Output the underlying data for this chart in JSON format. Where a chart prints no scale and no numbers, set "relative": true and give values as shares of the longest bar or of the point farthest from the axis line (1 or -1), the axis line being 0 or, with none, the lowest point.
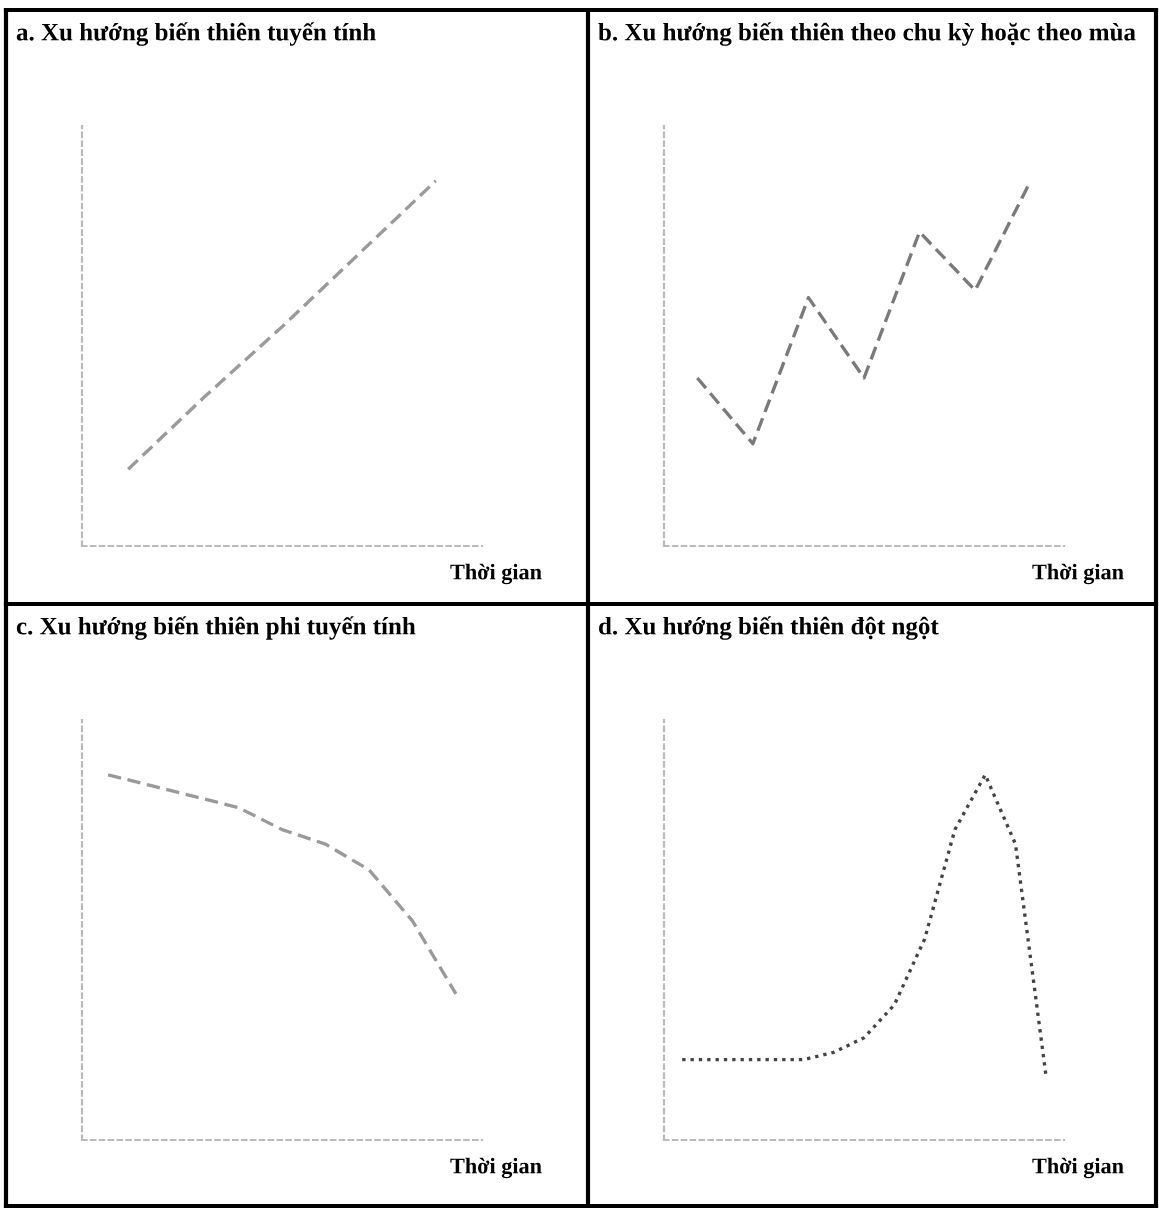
{
  "chart_data": [
    {
      "type": "line",
      "title": "a. Xu hướng biến thiên tuyến tính",
      "xlabel": "Thời gian",
      "relative": true,
      "line_style": "dashed",
      "categories": [
        null,
        null,
        null,
        null,
        null
      ],
      "series": [
        {
          "color": "#9a9a9a",
          "values": [
            0.21,
            0.41,
            0.6,
            0.8,
            1.0
          ]
        }
      ]
    },
    {
      "type": "line",
      "title": "b. Xu hướng biến thiên theo chu kỳ hoặc theo mùa",
      "xlabel": "Thời gian",
      "relative": true,
      "line_style": "dashed",
      "categories": [
        null,
        null,
        null,
        null,
        null,
        null,
        null
      ],
      "series": [
        {
          "color": "#7a7a7a",
          "values": [
            0.46,
            0.28,
            0.68,
            0.46,
            0.86,
            0.7,
            1.0
          ]
        }
      ]
    },
    {
      "type": "line",
      "title": "c. Xu hướng biến thiên phi tuyến tính",
      "xlabel": "Thời gian",
      "relative": true,
      "line_style": "dashed",
      "categories": [
        null,
        null,
        null,
        null,
        null,
        null,
        null,
        null,
        null
      ],
      "series": [
        {
          "color": "#9a9a9a",
          "values": [
            1.0,
            0.97,
            0.94,
            0.91,
            0.85,
            0.81,
            0.74,
            0.6,
            0.4
          ]
        }
      ]
    },
    {
      "type": "line",
      "title": "d. Xu hướng biến thiên đột ngột",
      "xlabel": "Thời gian",
      "relative": true,
      "line_style": "dotted",
      "categories": [
        null,
        null,
        null,
        null,
        null,
        null,
        null,
        null,
        null,
        null,
        null,
        null,
        null
      ],
      "series": [
        {
          "color": "#444444",
          "values": [
            0.22,
            0.22,
            0.22,
            0.22,
            0.22,
            0.24,
            0.28,
            0.37,
            0.55,
            0.85,
            1.0,
            0.81,
            0.18
          ]
        }
      ]
    }
  ]
}
